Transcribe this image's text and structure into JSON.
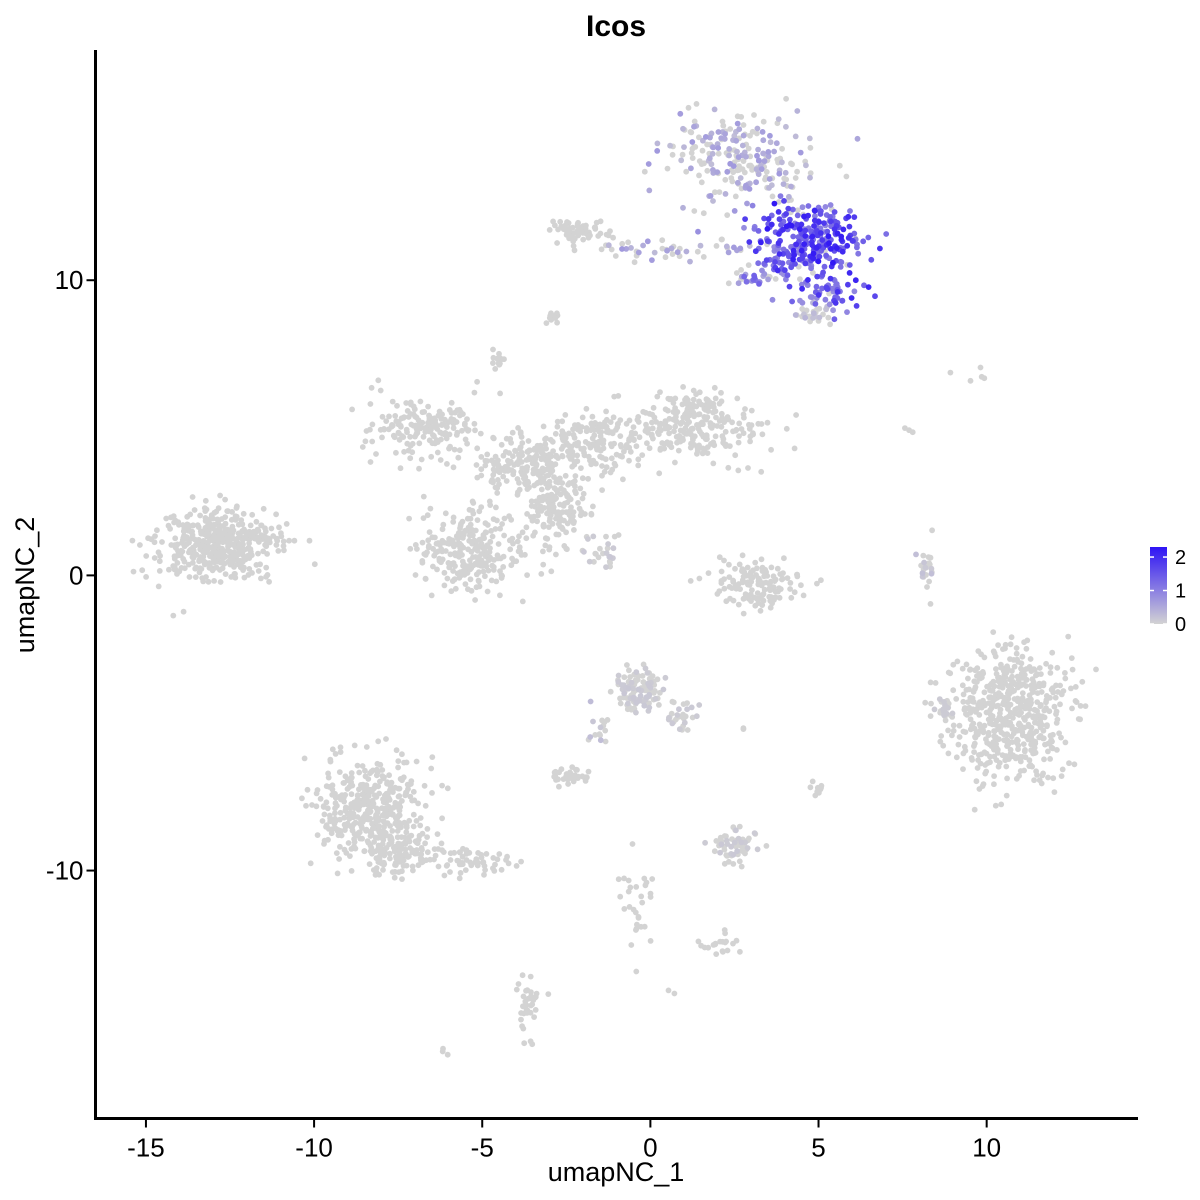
{
  "chart_data": {
    "type": "scatter",
    "title": "Icos",
    "xlabel": "umapNC_1",
    "ylabel": "umapNC_2",
    "xlim": [
      -16.5,
      14.5
    ],
    "ylim": [
      -18.4,
      17.8
    ],
    "xticks": [
      -15,
      -10,
      -5,
      0,
      5,
      10
    ],
    "xtick_labels": [
      "-15",
      "-10",
      "-5",
      "0",
      "5",
      "10"
    ],
    "yticks": [
      -10,
      0,
      10
    ],
    "ytick_labels": [
      "-10",
      "0",
      "10"
    ],
    "grid": false,
    "legend": {
      "position": "right",
      "title": "",
      "min": 0,
      "max": 2.3,
      "ticks": [
        0,
        1,
        2
      ],
      "tick_labels": [
        "0",
        "1",
        "2"
      ],
      "low_color": "#d3d3d3",
      "high_color": "#2e14f5"
    },
    "clusters": [
      {
        "x": 2.6,
        "y": 14.2,
        "sx": 1.3,
        "sy": 0.9,
        "n": 230,
        "expr": 0.5
      },
      {
        "x": 4.6,
        "y": 11.4,
        "sx": 1.0,
        "sy": 0.7,
        "n": 280,
        "expr": 1.6
      },
      {
        "x": 5.3,
        "y": 9.6,
        "sx": 0.6,
        "sy": 0.35,
        "n": 60,
        "expr": 1.5
      },
      {
        "x": 4.9,
        "y": 8.9,
        "sx": 0.3,
        "sy": 0.2,
        "n": 30,
        "expr": 0.3
      },
      {
        "x": -2.2,
        "y": 11.6,
        "sx": 0.5,
        "sy": 0.25,
        "n": 60,
        "expr": 0.0
      },
      {
        "x": 0.5,
        "y": 11.0,
        "sx": 1.6,
        "sy": 0.25,
        "n": 50,
        "expr": 0.5
      },
      {
        "x": 3.3,
        "y": 10.1,
        "sx": 0.7,
        "sy": 0.2,
        "n": 30,
        "expr": 1.0
      },
      {
        "x": -2.9,
        "y": 8.7,
        "sx": 0.15,
        "sy": 0.2,
        "n": 10,
        "expr": 0.0
      },
      {
        "x": -4.6,
        "y": 7.3,
        "sx": 0.15,
        "sy": 0.2,
        "n": 15,
        "expr": 0.0
      },
      {
        "x": -12.8,
        "y": 1.1,
        "sx": 1.0,
        "sy": 0.7,
        "n": 450,
        "expr": 0.0
      },
      {
        "x": -6.8,
        "y": 5.0,
        "sx": 1.0,
        "sy": 0.6,
        "n": 180,
        "expr": 0.0
      },
      {
        "x": -3.8,
        "y": 3.8,
        "sx": 1.0,
        "sy": 0.6,
        "n": 180,
        "expr": 0.0
      },
      {
        "x": -1.8,
        "y": 4.5,
        "sx": 0.8,
        "sy": 0.7,
        "n": 140,
        "expr": 0.0
      },
      {
        "x": 1.2,
        "y": 4.8,
        "sx": 1.3,
        "sy": 0.6,
        "n": 200,
        "expr": 0.0
      },
      {
        "x": 1.3,
        "y": 5.8,
        "sx": 0.7,
        "sy": 0.4,
        "n": 60,
        "expr": 0.0
      },
      {
        "x": -5.3,
        "y": 0.9,
        "sx": 0.9,
        "sy": 0.8,
        "n": 260,
        "expr": 0.0
      },
      {
        "x": -2.8,
        "y": 2.3,
        "sx": 0.6,
        "sy": 0.8,
        "n": 160,
        "expr": 0.0
      },
      {
        "x": -1.4,
        "y": 0.9,
        "sx": 0.35,
        "sy": 0.4,
        "n": 25,
        "expr": 0.1
      },
      {
        "x": 3.2,
        "y": -0.3,
        "sx": 0.8,
        "sy": 0.5,
        "n": 130,
        "expr": 0.0
      },
      {
        "x": 8.2,
        "y": 0.1,
        "sx": 0.15,
        "sy": 0.45,
        "n": 25,
        "expr": 0.2
      },
      {
        "x": 10.7,
        "y": -4.7,
        "sx": 1.0,
        "sy": 1.3,
        "n": 550,
        "expr": 0.0
      },
      {
        "x": 8.6,
        "y": -4.4,
        "sx": 0.3,
        "sy": 0.3,
        "n": 25,
        "expr": 0.05
      },
      {
        "x": -0.3,
        "y": -3.9,
        "sx": 0.5,
        "sy": 0.4,
        "n": 110,
        "expr": 0.1
      },
      {
        "x": 0.9,
        "y": -4.8,
        "sx": 0.3,
        "sy": 0.4,
        "n": 25,
        "expr": 0.1
      },
      {
        "x": -1.5,
        "y": -5.3,
        "sx": 0.2,
        "sy": 0.5,
        "n": 15,
        "expr": 0.2
      },
      {
        "x": -8.3,
        "y": -7.8,
        "sx": 0.9,
        "sy": 1.0,
        "n": 380,
        "expr": 0.0
      },
      {
        "x": -7.5,
        "y": -9.4,
        "sx": 0.6,
        "sy": 0.5,
        "n": 120,
        "expr": 0.0
      },
      {
        "x": -5.2,
        "y": -9.7,
        "sx": 0.8,
        "sy": 0.3,
        "n": 60,
        "expr": 0.0
      },
      {
        "x": -2.5,
        "y": -6.8,
        "sx": 0.3,
        "sy": 0.15,
        "n": 35,
        "expr": 0.0
      },
      {
        "x": 2.4,
        "y": -9.2,
        "sx": 0.4,
        "sy": 0.4,
        "n": 60,
        "expr": 0.1
      },
      {
        "x": 5.0,
        "y": -7.3,
        "sx": 0.1,
        "sy": 0.2,
        "n": 12,
        "expr": 0.0
      },
      {
        "x": -0.4,
        "y": -11.4,
        "sx": 0.3,
        "sy": 0.9,
        "n": 30,
        "expr": 0.0
      },
      {
        "x": 2.0,
        "y": -12.5,
        "sx": 0.4,
        "sy": 0.2,
        "n": 20,
        "expr": 0.0
      },
      {
        "x": -3.6,
        "y": -14.5,
        "sx": 0.2,
        "sy": 0.6,
        "n": 35,
        "expr": 0.0
      },
      {
        "x": -6.1,
        "y": -16.2,
        "sx": 0.1,
        "sy": 0.1,
        "n": 3,
        "expr": 0.0
      },
      {
        "x": 0.6,
        "y": -14.1,
        "sx": 0.1,
        "sy": 0.1,
        "n": 2,
        "expr": 0.0
      },
      {
        "x": 9.6,
        "y": 6.8,
        "sx": 0.3,
        "sy": 0.15,
        "n": 5,
        "expr": 0.0
      },
      {
        "x": 7.6,
        "y": 4.8,
        "sx": 0.1,
        "sy": 0.2,
        "n": 3,
        "expr": 0.0
      },
      {
        "x": 2.8,
        "y": -5.2,
        "sx": 0.1,
        "sy": 0.05,
        "n": 2,
        "expr": 0.0
      }
    ]
  }
}
